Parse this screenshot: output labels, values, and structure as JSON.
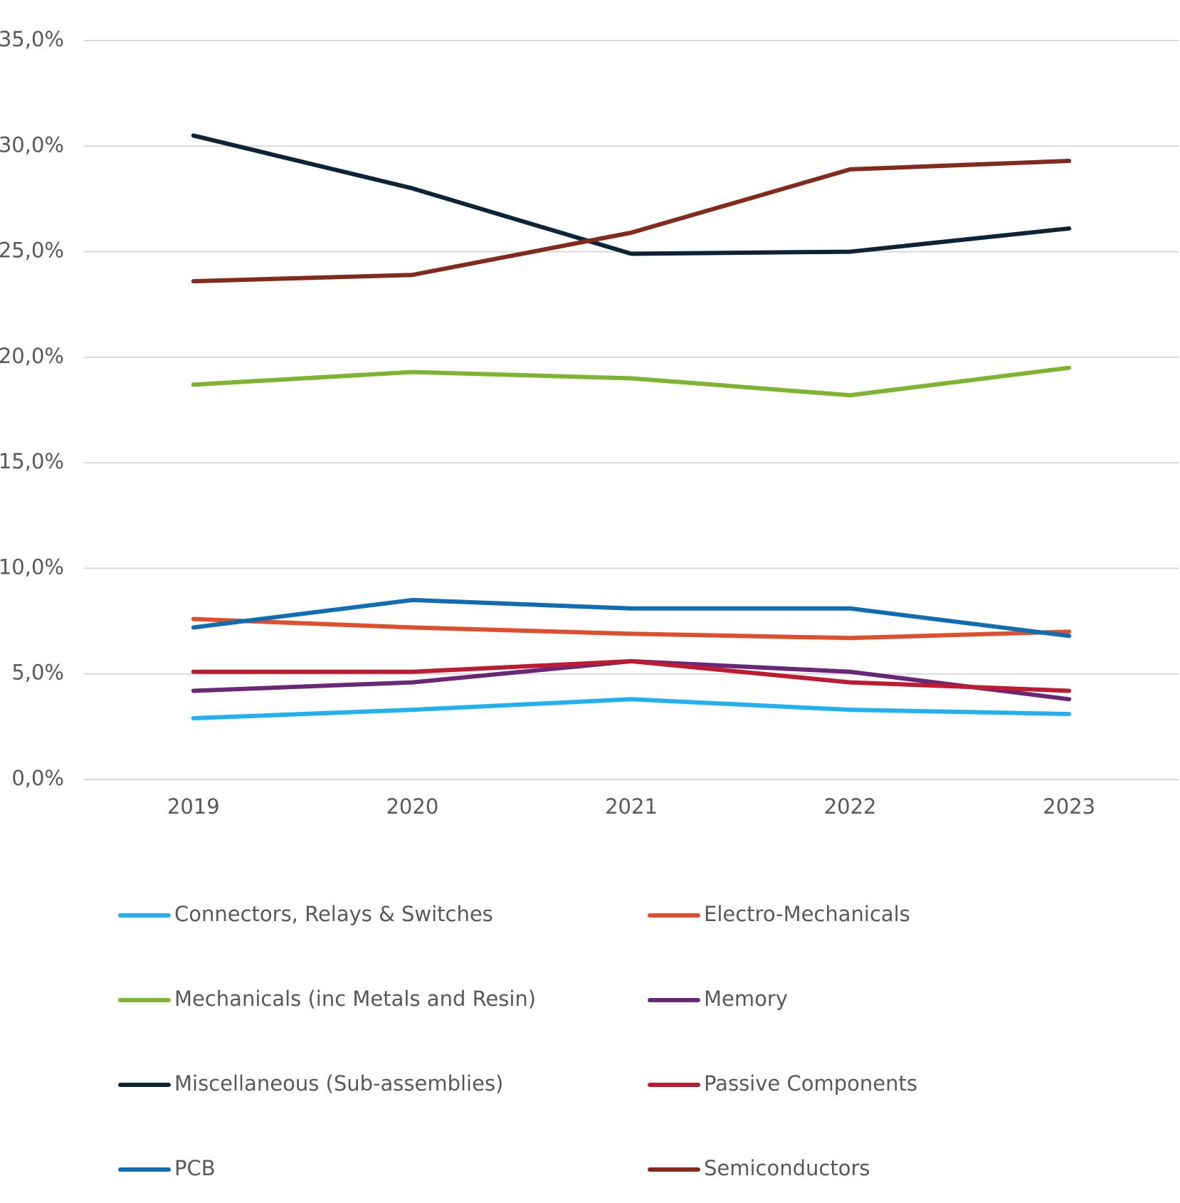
{
  "chart_data": {
    "type": "line",
    "categories": [
      "2019",
      "2020",
      "2021",
      "2022",
      "2023"
    ],
    "series": [
      {
        "name": "Connectors, Relays & Switches",
        "color": "#1fb1f2",
        "values": [
          2.9,
          3.3,
          3.8,
          3.3,
          3.1
        ]
      },
      {
        "name": "Electro-Mechanicals",
        "color": "#e04e2b",
        "values": [
          7.6,
          7.2,
          6.9,
          6.7,
          7.0
        ]
      },
      {
        "name": "Mechanicals (inc Metals and Resin)",
        "color": "#7fb42e",
        "values": [
          18.7,
          19.3,
          19.0,
          18.2,
          19.5
        ]
      },
      {
        "name": "Memory",
        "color": "#6a2778",
        "values": [
          4.2,
          4.6,
          5.6,
          5.1,
          3.8
        ]
      },
      {
        "name": "Miscellaneous (Sub-assemblies)",
        "color": "#0d2437",
        "values": [
          30.5,
          28.0,
          24.9,
          25.0,
          26.1
        ]
      },
      {
        "name": "Passive Components",
        "color": "#c01a31",
        "values": [
          5.1,
          5.1,
          5.6,
          4.6,
          4.2
        ]
      },
      {
        "name": "PCB",
        "color": "#0f6db3",
        "values": [
          7.2,
          8.5,
          8.1,
          8.1,
          6.8
        ]
      },
      {
        "name": "Semiconductors",
        "color": "#832a1c",
        "values": [
          23.6,
          23.9,
          25.9,
          28.9,
          29.3
        ]
      }
    ],
    "ylim": [
      0,
      35
    ],
    "yticks": [
      {
        "value": 0,
        "label": "0,0%"
      },
      {
        "value": 5,
        "label": "5,0%"
      },
      {
        "value": 10,
        "label": "10,0%"
      },
      {
        "value": 15,
        "label": "15,0%"
      },
      {
        "value": 20,
        "label": "20,0%"
      },
      {
        "value": 25,
        "label": "25,0%"
      },
      {
        "value": 30,
        "label": "30,0%"
      },
      {
        "value": 35,
        "label": "35,0%"
      }
    ],
    "grid": true,
    "legend": "bottom"
  }
}
